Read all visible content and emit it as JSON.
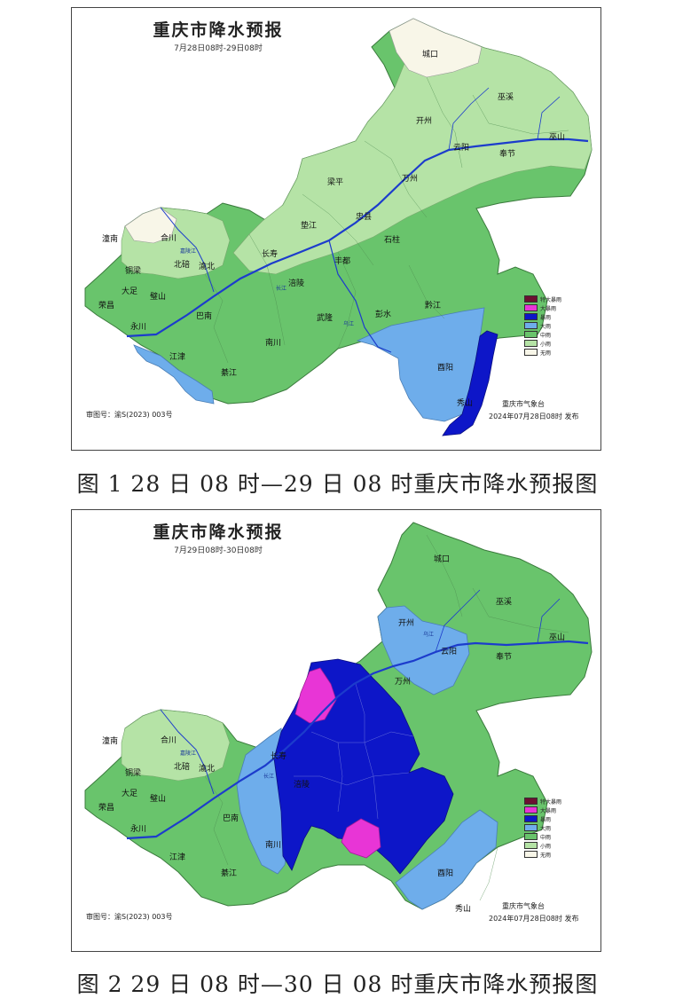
{
  "colors": {
    "extreme_rainstorm": "#6b1131",
    "heavy_rainstorm": "#e835d6",
    "rainstorm": "#0d16c8",
    "heavy_rain": "#6eadeb",
    "moderate_rain": "#69c46c",
    "light_rain": "#b5e3a6",
    "no_rain": "#f8f6e8",
    "river": "#1c3ccc"
  },
  "legend": [
    {
      "label": "特大暴雨",
      "color": "#6b1131"
    },
    {
      "label": "大暴雨",
      "color": "#e835d6"
    },
    {
      "label": "暴雨",
      "color": "#0d16c8"
    },
    {
      "label": "大雨",
      "color": "#6eadeb"
    },
    {
      "label": "中雨",
      "color": "#69c46c"
    },
    {
      "label": "小雨",
      "color": "#b5e3a6"
    },
    {
      "label": "无雨",
      "color": "#f8f6e8"
    }
  ],
  "map1": {
    "title": "重庆市降水预报",
    "subtitle": "7月28日08时-29日08时",
    "approval": "审图号：渝S(2023) 003号",
    "issuer": "重庆市气象台",
    "issue_time": "2024年07月28日08时  发布",
    "places": {
      "chengkou": "城口",
      "wuxi": "巫溪",
      "kaizhou": "开州",
      "wushan": "巫山",
      "yunyang": "云阳",
      "fengjie": "奉节",
      "wanzhou": "万州",
      "liangping": "梁平",
      "zhongxian": "忠县",
      "dianjiang": "垫江",
      "shizhu": "石柱",
      "changshou": "长寿",
      "fengdu": "丰都",
      "fuling": "涪陵",
      "tongnan": "潼南",
      "hechuan": "合川",
      "tongliang": "铜梁",
      "beibei": "北碚",
      "yubei": "渝北",
      "dazu": "大足",
      "bishan": "璧山",
      "rongchang": "荣昌",
      "yongchuan": "永川",
      "banan": "巴南",
      "nanchuan": "南川",
      "wulong": "武隆",
      "pengshui": "彭水",
      "qianjiang": "黔江",
      "youyang": "酉阳",
      "xiushan": "秀山",
      "jiangjin": "江津",
      "qijiang": "綦江"
    },
    "rivers": {
      "changjiang": "长江",
      "jialing": "嘉陵江",
      "wujiang": "乌江"
    }
  },
  "map2": {
    "title": "重庆市降水预报",
    "subtitle": "7月29日08时-30日08时",
    "approval": "审图号：渝S(2023) 003号",
    "issuer": "重庆市气象台",
    "issue_time": "2024年07月28日08时  发布",
    "places": {
      "chengkou": "城口",
      "wuxi": "巫溪",
      "kaizhou": "开州",
      "wushan": "巫山",
      "yunyang": "云阳",
      "fengjie": "奉节",
      "wanzhou": "万州",
      "changshou": "长寿",
      "fuling": "涪陵",
      "tongnan": "潼南",
      "hechuan": "合川",
      "tongliang": "铜梁",
      "beibei": "北碚",
      "yubei": "渝北",
      "dazu": "大足",
      "bishan": "璧山",
      "rongchang": "荣昌",
      "yongchuan": "永川",
      "banan": "巴南",
      "nanchuan": "南川",
      "youyang": "酉阳",
      "xiushan": "秀山",
      "jiangjin": "江津",
      "qijiang": "綦江"
    },
    "rivers": {
      "changjiang": "长江",
      "jialing": "嘉陵江",
      "wujiang": "乌江"
    }
  },
  "captions": {
    "figure1": "图 1    28 日 08 时—29 日 08 时重庆市降水预报图",
    "figure2": "图 2    29 日 08 时—30 日 08 时重庆市降水预报图"
  }
}
